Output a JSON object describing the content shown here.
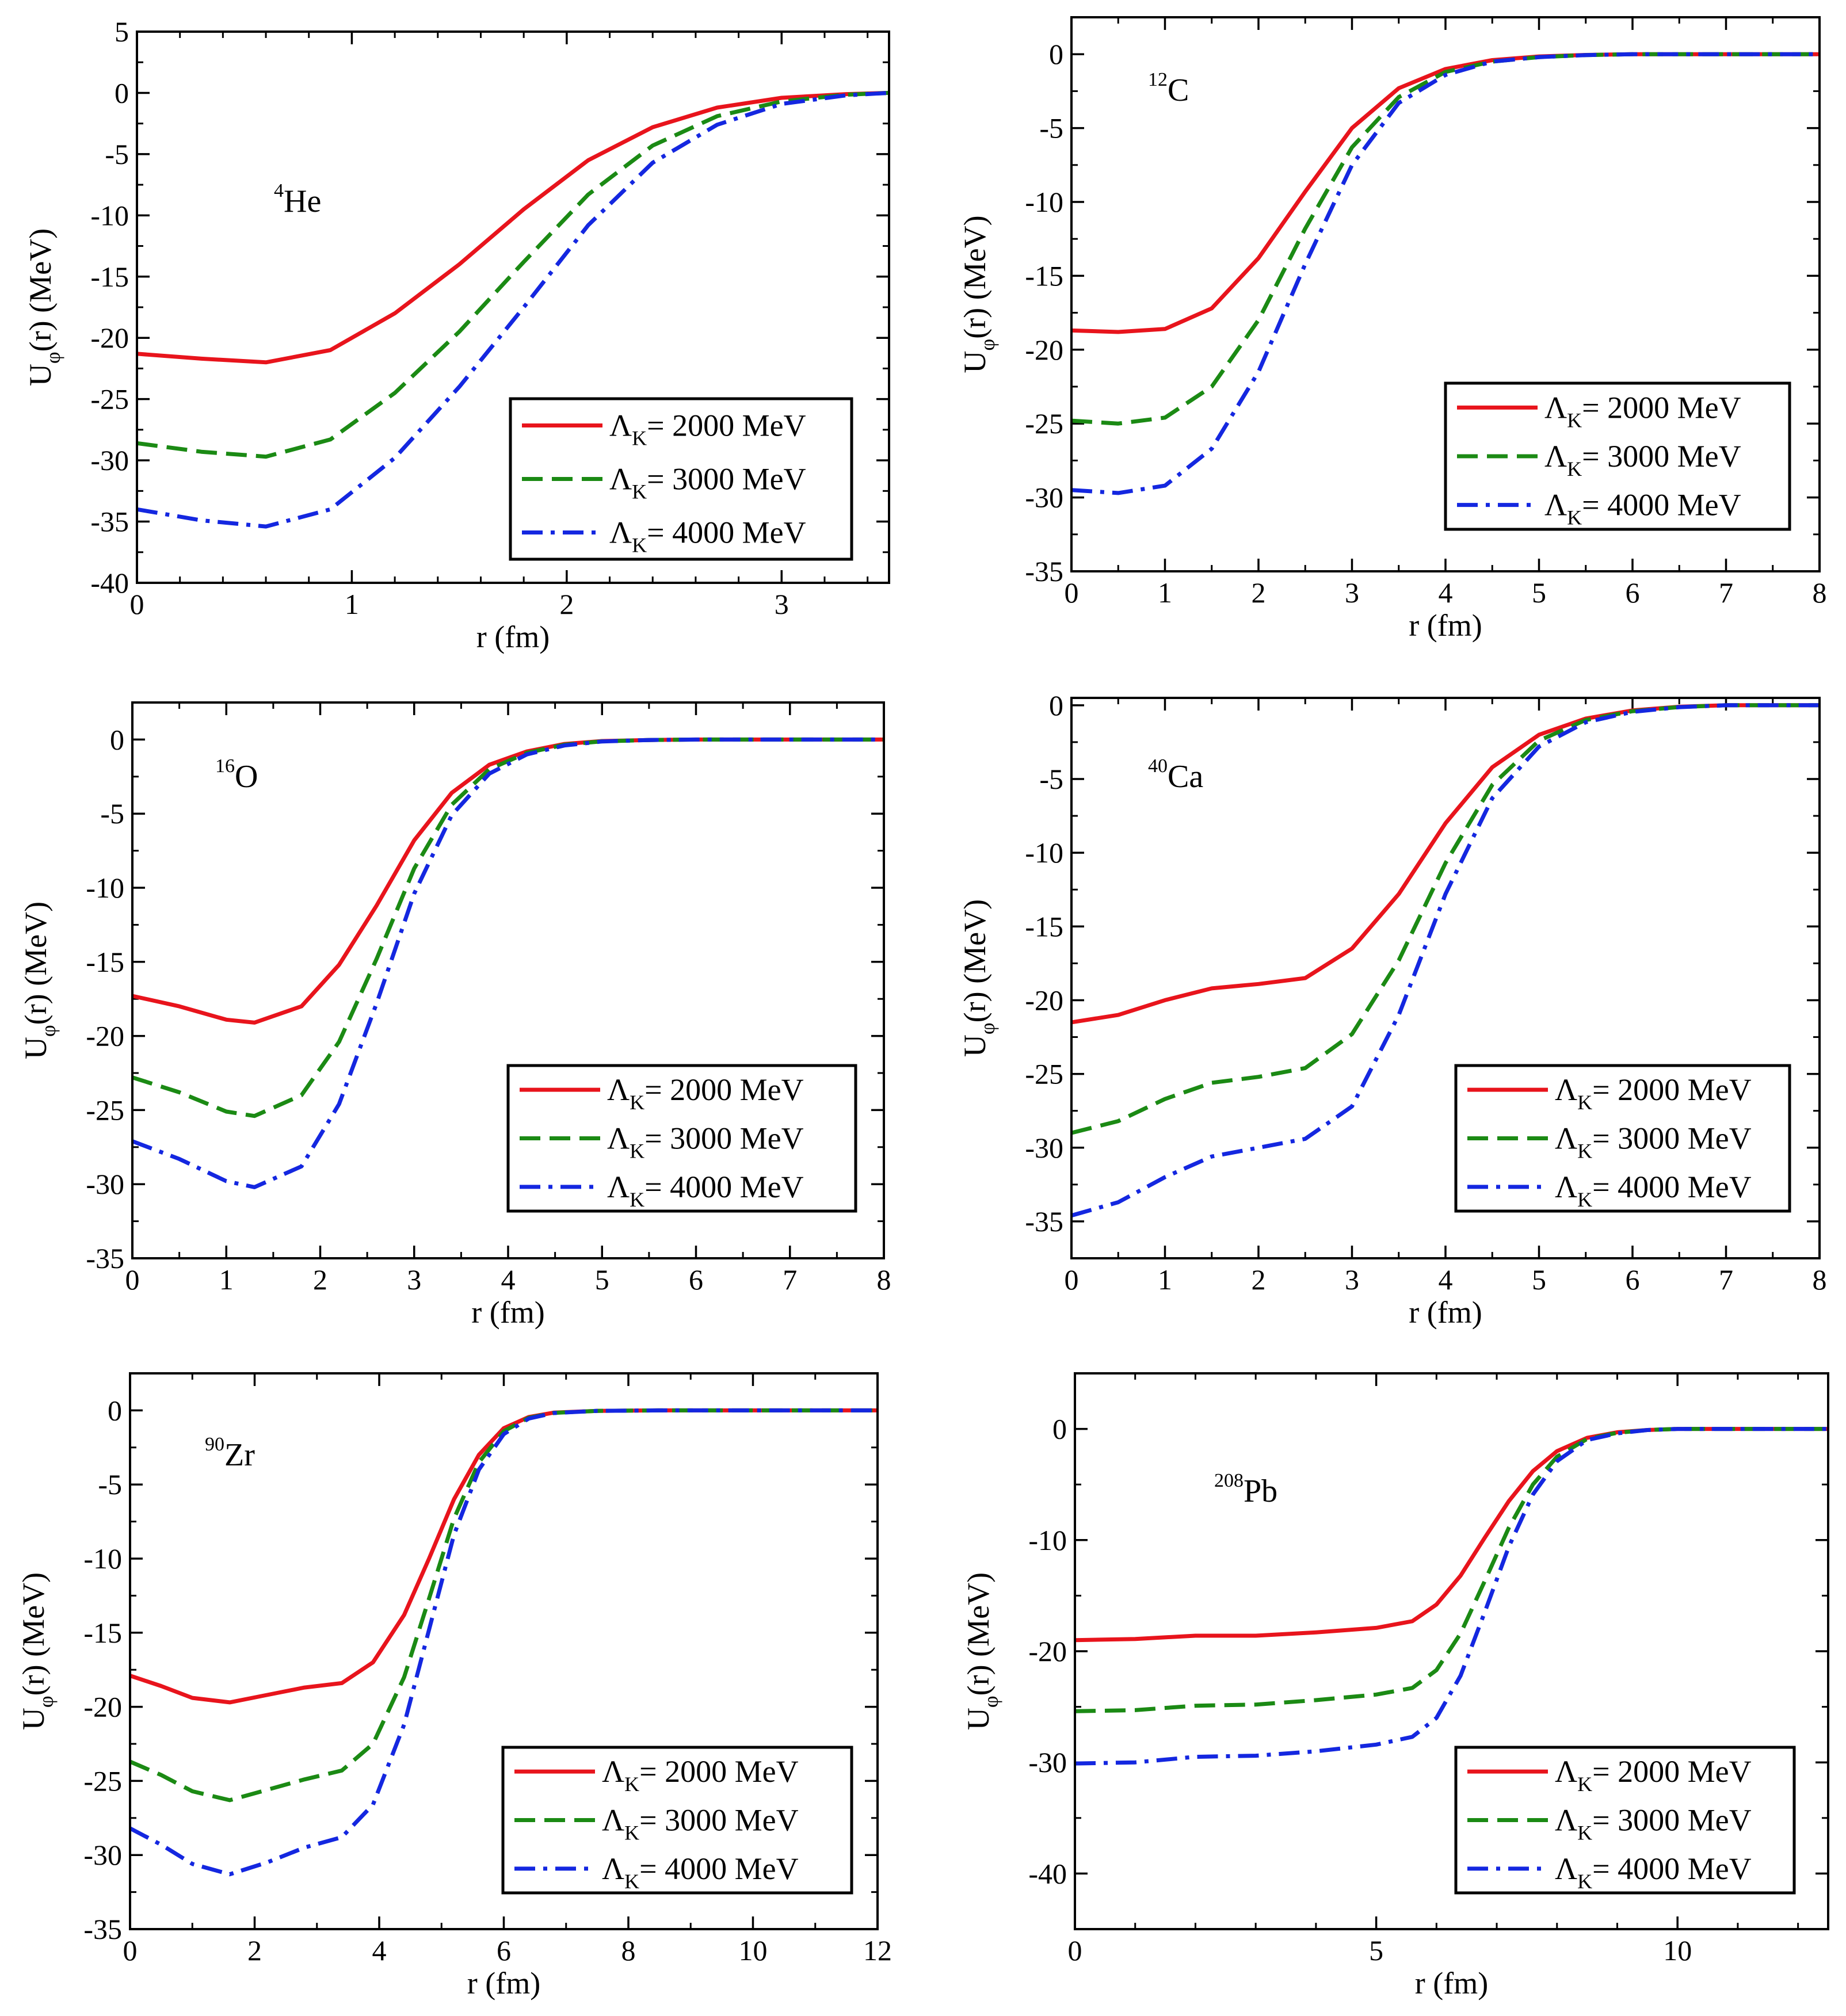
{
  "figure": {
    "title": ""
  },
  "colors": {
    "l2000": "#e8141c",
    "l3000": "#1b8a14",
    "l4000": "#1427e0"
  },
  "legend_entries": [
    {
      "symbol": "Λ",
      "sub": "K",
      "text": "= 2000 MeV",
      "color": "#e8141c",
      "dash": "solid"
    },
    {
      "symbol": "Λ",
      "sub": "K",
      "text": "= 3000 MeV",
      "color": "#1b8a14",
      "dash": "dashed"
    },
    {
      "symbol": "Λ",
      "sub": "K",
      "text": "= 4000 MeV",
      "color": "#1427e0",
      "dash": "dashdot"
    }
  ],
  "chart_data": [
    {
      "type": "line",
      "nucleus": {
        "mass": "4",
        "symbol": "He"
      },
      "xlabel": "r (fm)",
      "ylabel": {
        "main": "U",
        "sub": "φ",
        "rest": "(r) (MeV)"
      },
      "xlim": [
        0,
        3.5
      ],
      "ylim": [
        -40,
        5
      ],
      "xticks": [
        0,
        1,
        2,
        3
      ],
      "xminor": 0.2,
      "yticks": [
        5,
        0,
        -5,
        -10,
        -15,
        -20,
        -25,
        -30,
        -35,
        -40
      ],
      "yminor": 2.5,
      "series": [
        {
          "name": "ΛK = 2000 MeV",
          "dash": "solid",
          "x": [
            0,
            0.3,
            0.6,
            0.9,
            1.2,
            1.5,
            1.8,
            2.1,
            2.4,
            2.7,
            3.0,
            3.3,
            3.5
          ],
          "y": [
            -21.3,
            -21.7,
            -22.0,
            -21.0,
            -18.0,
            -14.0,
            -9.5,
            -5.5,
            -2.8,
            -1.2,
            -0.4,
            -0.1,
            0
          ]
        },
        {
          "name": "ΛK = 3000 MeV",
          "dash": "dashed",
          "x": [
            0,
            0.3,
            0.6,
            0.9,
            1.2,
            1.5,
            1.8,
            2.1,
            2.4,
            2.7,
            3.0,
            3.3,
            3.5
          ],
          "y": [
            -28.6,
            -29.3,
            -29.7,
            -28.3,
            -24.5,
            -19.5,
            -13.8,
            -8.3,
            -4.3,
            -1.9,
            -0.7,
            -0.15,
            0
          ]
        },
        {
          "name": "ΛK = 4000 MeV",
          "dash": "dashdot",
          "x": [
            0,
            0.3,
            0.6,
            0.9,
            1.2,
            1.5,
            1.8,
            2.1,
            2.4,
            2.7,
            3.0,
            3.3,
            3.5
          ],
          "y": [
            -34.0,
            -34.9,
            -35.4,
            -34.0,
            -29.8,
            -24.0,
            -17.5,
            -10.8,
            -5.7,
            -2.6,
            -0.9,
            -0.2,
            0
          ]
        }
      ]
    },
    {
      "type": "line",
      "nucleus": {
        "mass": "12",
        "symbol": "C"
      },
      "xlabel": "r (fm)",
      "ylabel": {
        "main": "U",
        "sub": "φ",
        "rest": "(r) (MeV)"
      },
      "xlim": [
        0,
        8
      ],
      "ylim": [
        -35,
        2.5
      ],
      "xticks": [
        0,
        1,
        2,
        3,
        4,
        5,
        6,
        7,
        8
      ],
      "xminor": 0.5,
      "yticks": [
        0,
        -5,
        -10,
        -15,
        -20,
        -25,
        -30,
        -35
      ],
      "yminor": 2.5,
      "series": [
        {
          "name": "ΛK = 2000 MeV",
          "dash": "solid",
          "x": [
            0,
            0.5,
            1.0,
            1.5,
            2.0,
            2.5,
            3.0,
            3.5,
            4.0,
            4.5,
            5.0,
            5.5,
            6.0,
            8.0
          ],
          "y": [
            -18.7,
            -18.8,
            -18.6,
            -17.2,
            -13.8,
            -9.3,
            -5.0,
            -2.3,
            -1.0,
            -0.4,
            -0.15,
            -0.05,
            0,
            0
          ]
        },
        {
          "name": "ΛK = 3000 MeV",
          "dash": "dashed",
          "x": [
            0,
            0.5,
            1.0,
            1.5,
            2.0,
            2.5,
            3.0,
            3.5,
            4.0,
            4.5,
            5.0,
            5.5,
            6.0,
            8.0
          ],
          "y": [
            -24.8,
            -25.0,
            -24.6,
            -22.5,
            -18.0,
            -11.8,
            -6.3,
            -2.9,
            -1.2,
            -0.5,
            -0.2,
            -0.06,
            0,
            0
          ]
        },
        {
          "name": "ΛK = 4000 MeV",
          "dash": "dashdot",
          "x": [
            0,
            0.5,
            1.0,
            1.5,
            2.0,
            2.5,
            3.0,
            3.5,
            4.0,
            4.5,
            5.0,
            5.5,
            6.0,
            8.0
          ],
          "y": [
            -29.5,
            -29.7,
            -29.2,
            -26.7,
            -21.5,
            -14.2,
            -7.5,
            -3.3,
            -1.4,
            -0.5,
            -0.2,
            -0.06,
            0,
            0
          ]
        }
      ]
    },
    {
      "type": "line",
      "nucleus": {
        "mass": "16",
        "symbol": "O"
      },
      "xlabel": "r (fm)",
      "ylabel": {
        "main": "U",
        "sub": "φ",
        "rest": "(r) (MeV)"
      },
      "xlim": [
        0,
        8
      ],
      "ylim": [
        -35,
        2.5
      ],
      "xticks": [
        0,
        1,
        2,
        3,
        4,
        5,
        6,
        7,
        8
      ],
      "xminor": 0.5,
      "yticks": [
        0,
        -5,
        -10,
        -15,
        -20,
        -25,
        -30,
        -35
      ],
      "yminor": 2.5,
      "series": [
        {
          "name": "ΛK = 2000 MeV",
          "dash": "solid",
          "x": [
            0,
            0.5,
            1.0,
            1.3,
            1.8,
            2.2,
            2.6,
            3.0,
            3.4,
            3.8,
            4.2,
            4.6,
            5.0,
            5.5,
            6.0,
            8.0
          ],
          "y": [
            -17.3,
            -18.0,
            -18.9,
            -19.1,
            -18.0,
            -15.2,
            -11.2,
            -6.8,
            -3.6,
            -1.7,
            -0.8,
            -0.3,
            -0.1,
            -0.03,
            0,
            0
          ]
        },
        {
          "name": "ΛK = 3000 MeV",
          "dash": "dashed",
          "x": [
            0,
            0.5,
            1.0,
            1.3,
            1.8,
            2.2,
            2.6,
            3.0,
            3.4,
            3.8,
            4.2,
            4.6,
            5.0,
            5.5,
            6.0,
            8.0
          ],
          "y": [
            -22.8,
            -23.8,
            -25.1,
            -25.4,
            -24.0,
            -20.4,
            -14.8,
            -8.7,
            -4.4,
            -2.0,
            -0.9,
            -0.35,
            -0.12,
            -0.03,
            0,
            0
          ]
        },
        {
          "name": "ΛK = 4000 MeV",
          "dash": "dashdot",
          "x": [
            0,
            0.5,
            1.0,
            1.3,
            1.8,
            2.2,
            2.6,
            3.0,
            3.4,
            3.8,
            4.2,
            4.6,
            5.0,
            5.5,
            6.0,
            8.0
          ],
          "y": [
            -27.1,
            -28.3,
            -29.8,
            -30.2,
            -28.8,
            -24.6,
            -17.8,
            -10.4,
            -5.1,
            -2.3,
            -1.0,
            -0.4,
            -0.13,
            -0.03,
            0,
            0
          ]
        }
      ]
    },
    {
      "type": "line",
      "nucleus": {
        "mass": "40",
        "symbol": "Ca"
      },
      "xlabel": "r (fm)",
      "ylabel": {
        "main": "U",
        "sub": "φ",
        "rest": "(r) (MeV)"
      },
      "xlim": [
        0,
        8
      ],
      "ylim": [
        -37.5,
        0.5
      ],
      "xticks": [
        0,
        1,
        2,
        3,
        4,
        5,
        6,
        7,
        8
      ],
      "xminor": 0.5,
      "yticks": [
        0,
        -5,
        -10,
        -15,
        -20,
        -25,
        -30,
        -35
      ],
      "yminor": 2.5,
      "series": [
        {
          "name": "ΛK = 2000 MeV",
          "dash": "solid",
          "x": [
            0,
            0.5,
            1.0,
            1.5,
            2.0,
            2.5,
            3.0,
            3.5,
            4.0,
            4.5,
            5.0,
            5.5,
            6.0,
            6.5,
            7.0,
            8.0
          ],
          "y": [
            -21.5,
            -21.0,
            -20.0,
            -19.2,
            -18.9,
            -18.5,
            -16.5,
            -12.8,
            -8.0,
            -4.2,
            -2.0,
            -0.9,
            -0.35,
            -0.1,
            0,
            0
          ]
        },
        {
          "name": "ΛK = 3000 MeV",
          "dash": "dashed",
          "x": [
            0,
            0.5,
            1.0,
            1.5,
            2.0,
            2.5,
            3.0,
            3.5,
            4.0,
            4.5,
            5.0,
            5.5,
            6.0,
            6.5,
            7.0,
            8.0
          ],
          "y": [
            -29.0,
            -28.2,
            -26.7,
            -25.6,
            -25.2,
            -24.6,
            -22.3,
            -17.3,
            -10.7,
            -5.4,
            -2.4,
            -1.0,
            -0.4,
            -0.12,
            0,
            0
          ]
        },
        {
          "name": "ΛK = 4000 MeV",
          "dash": "dashdot",
          "x": [
            0,
            0.5,
            1.0,
            1.5,
            2.0,
            2.5,
            3.0,
            3.5,
            4.0,
            4.5,
            5.0,
            5.5,
            6.0,
            6.5,
            7.0,
            8.0
          ],
          "y": [
            -34.6,
            -33.7,
            -32.0,
            -30.6,
            -30.0,
            -29.4,
            -27.2,
            -21.0,
            -12.8,
            -6.3,
            -2.8,
            -1.15,
            -0.45,
            -0.13,
            0,
            0
          ]
        }
      ]
    },
    {
      "type": "line",
      "nucleus": {
        "mass": "90",
        "symbol": "Zr"
      },
      "xlabel": "r (fm)",
      "ylabel": {
        "main": "U",
        "sub": "φ",
        "rest": "(r) (MeV)"
      },
      "xlim": [
        0,
        12
      ],
      "ylim": [
        -35,
        2.5
      ],
      "xticks": [
        0,
        2,
        4,
        6,
        8,
        10,
        12
      ],
      "xminor": 1,
      "yticks": [
        0,
        -5,
        -10,
        -15,
        -20,
        -25,
        -30,
        -35
      ],
      "yminor": 2.5,
      "series": [
        {
          "name": "ΛK = 2000 MeV",
          "dash": "solid",
          "x": [
            0,
            0.5,
            1.0,
            1.6,
            2.2,
            2.8,
            3.4,
            3.9,
            4.4,
            4.8,
            5.2,
            5.6,
            6.0,
            6.4,
            6.8,
            7.5,
            8.5,
            12.0
          ],
          "y": [
            -17.9,
            -18.6,
            -19.4,
            -19.7,
            -19.2,
            -18.7,
            -18.4,
            -17.0,
            -13.8,
            -10.0,
            -6.0,
            -3.0,
            -1.2,
            -0.45,
            -0.15,
            -0.03,
            0,
            0
          ]
        },
        {
          "name": "ΛK = 3000 MeV",
          "dash": "dashed",
          "x": [
            0,
            0.5,
            1.0,
            1.6,
            2.2,
            2.8,
            3.4,
            3.9,
            4.4,
            4.8,
            5.2,
            5.6,
            6.0,
            6.4,
            6.8,
            7.5,
            8.5,
            12.0
          ],
          "y": [
            -23.7,
            -24.6,
            -25.7,
            -26.3,
            -25.6,
            -24.9,
            -24.3,
            -22.5,
            -18.0,
            -12.7,
            -7.3,
            -3.5,
            -1.4,
            -0.5,
            -0.17,
            -0.03,
            0,
            0
          ]
        },
        {
          "name": "ΛK = 4000 MeV",
          "dash": "dashdot",
          "x": [
            0,
            0.5,
            1.0,
            1.6,
            2.2,
            2.8,
            3.4,
            3.9,
            4.4,
            4.8,
            5.2,
            5.6,
            6.0,
            6.4,
            6.8,
            7.5,
            8.5,
            12.0
          ],
          "y": [
            -28.2,
            -29.3,
            -30.6,
            -31.3,
            -30.5,
            -29.5,
            -28.8,
            -26.6,
            -21.2,
            -14.8,
            -8.4,
            -4.0,
            -1.6,
            -0.55,
            -0.18,
            -0.03,
            0,
            0
          ]
        }
      ]
    },
    {
      "type": "line",
      "nucleus": {
        "mass": "208",
        "symbol": "Pb"
      },
      "xlabel": "r (fm)",
      "ylabel": {
        "main": "U",
        "sub": "φ",
        "rest": "(r) (MeV)"
      },
      "xlim": [
        0,
        12.5
      ],
      "ylim": [
        -45,
        5
      ],
      "xticks": [
        0,
        5,
        10
      ],
      "xminor": 1,
      "yticks": [
        0,
        -10,
        -20,
        -30,
        -40
      ],
      "yminor": 5,
      "series": [
        {
          "name": "ΛK = 2000 MeV",
          "dash": "solid",
          "x": [
            0,
            1.0,
            2.0,
            3.0,
            4.0,
            5.0,
            5.6,
            6.0,
            6.4,
            6.8,
            7.2,
            7.6,
            8.0,
            8.5,
            9.0,
            9.5,
            10.0,
            12.5
          ],
          "y": [
            -19.0,
            -18.9,
            -18.6,
            -18.6,
            -18.3,
            -17.9,
            -17.3,
            -15.8,
            -13.2,
            -9.8,
            -6.5,
            -3.8,
            -2.0,
            -0.8,
            -0.3,
            -0.1,
            0,
            0
          ]
        },
        {
          "name": "ΛK = 3000 MeV",
          "dash": "dashed",
          "x": [
            0,
            1.0,
            2.0,
            3.0,
            4.0,
            5.0,
            5.6,
            6.0,
            6.4,
            6.8,
            7.2,
            7.6,
            8.0,
            8.5,
            9.0,
            9.5,
            10.0,
            12.5
          ],
          "y": [
            -25.4,
            -25.3,
            -24.9,
            -24.8,
            -24.4,
            -23.9,
            -23.3,
            -21.7,
            -18.4,
            -13.7,
            -8.9,
            -5.0,
            -2.5,
            -0.9,
            -0.35,
            -0.1,
            0,
            0
          ]
        },
        {
          "name": "ΛK = 4000 MeV",
          "dash": "dashdot",
          "x": [
            0,
            1.0,
            2.0,
            3.0,
            4.0,
            5.0,
            5.6,
            6.0,
            6.4,
            6.8,
            7.2,
            7.6,
            8.0,
            8.5,
            9.0,
            9.5,
            10.0,
            12.5
          ],
          "y": [
            -30.1,
            -30.0,
            -29.5,
            -29.4,
            -29.0,
            -28.4,
            -27.7,
            -26.0,
            -22.2,
            -16.5,
            -10.6,
            -5.9,
            -2.9,
            -1.0,
            -0.4,
            -0.1,
            0,
            0
          ]
        }
      ]
    }
  ]
}
